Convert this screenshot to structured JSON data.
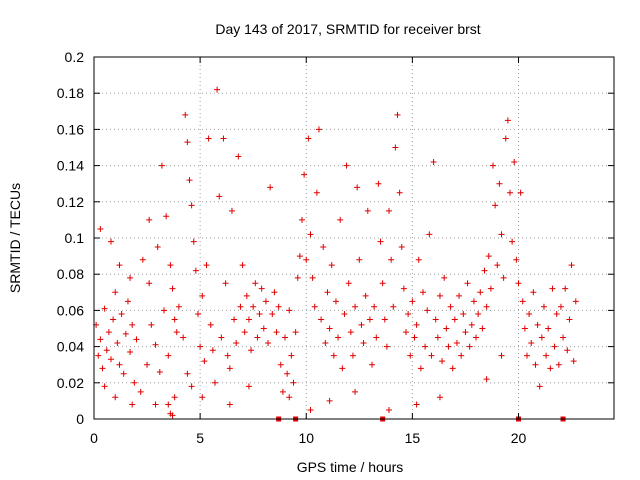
{
  "chart_data": {
    "type": "scatter",
    "title": "Day 143 of 2017, SRMTID for receiver brst",
    "xlabel": "GPS time / hours",
    "ylabel": "SRMTID / TECUs",
    "xlim": [
      0,
      24.5
    ],
    "ylim": [
      0,
      0.2
    ],
    "xticks": [
      0,
      5,
      10,
      15,
      20
    ],
    "xtick_labels": [
      "0",
      "5",
      "10",
      "15",
      "20"
    ],
    "yticks": [
      0,
      0.02,
      0.04,
      0.06,
      0.08,
      0.1,
      0.12,
      0.14,
      0.16,
      0.18,
      0.2
    ],
    "ytick_labels": [
      "0",
      "0.02",
      "0.04",
      "0.06",
      "0.08",
      "0.1",
      "0.12",
      "0.14",
      "0.16",
      "0.18",
      "0.2"
    ],
    "grid": true,
    "marker": "+",
    "color": "#e00000",
    "series": [
      {
        "name": "SRMTID",
        "points": [
          [
            0.1,
            0.052
          ],
          [
            0.2,
            0.035
          ],
          [
            0.3,
            0.044
          ],
          [
            0.4,
            0.028
          ],
          [
            0.5,
            0.061
          ],
          [
            0.6,
            0.038
          ],
          [
            0.7,
            0.048
          ],
          [
            0.8,
            0.033
          ],
          [
            0.9,
            0.055
          ],
          [
            1.0,
            0.07
          ],
          [
            1.1,
            0.042
          ],
          [
            1.2,
            0.03
          ],
          [
            1.3,
            0.058
          ],
          [
            1.4,
            0.025
          ],
          [
            1.5,
            0.047
          ],
          [
            1.6,
            0.065
          ],
          [
            1.7,
            0.037
          ],
          [
            1.8,
            0.052
          ],
          [
            1.9,
            0.02
          ],
          [
            2.0,
            0.044
          ],
          [
            0.3,
            0.105
          ],
          [
            0.8,
            0.098
          ],
          [
            1.2,
            0.085
          ],
          [
            1.7,
            0.078
          ],
          [
            2.3,
            0.088
          ],
          [
            2.6,
            0.11
          ],
          [
            0.5,
            0.018
          ],
          [
            1.0,
            0.012
          ],
          [
            1.8,
            0.008
          ],
          [
            2.2,
            0.015
          ],
          [
            2.5,
            0.03
          ],
          [
            2.7,
            0.052
          ],
          [
            2.9,
            0.041
          ],
          [
            3.1,
            0.026
          ],
          [
            3.3,
            0.06
          ],
          [
            3.5,
            0.035
          ],
          [
            3.7,
            0.072
          ],
          [
            3.9,
            0.048
          ],
          [
            2.6,
            0.075
          ],
          [
            3.0,
            0.095
          ],
          [
            3.2,
            0.14
          ],
          [
            3.4,
            0.112
          ],
          [
            3.6,
            0.085
          ],
          [
            3.8,
            0.055
          ],
          [
            3.5,
            0.008
          ],
          [
            3.6,
            0.003
          ],
          [
            3.7,
            0.002
          ],
          [
            3.8,
            0.012
          ],
          [
            4.0,
            0.062
          ],
          [
            4.2,
            0.045
          ],
          [
            4.3,
            0.168
          ],
          [
            4.4,
            0.153
          ],
          [
            4.5,
            0.132
          ],
          [
            4.6,
            0.118
          ],
          [
            4.7,
            0.098
          ],
          [
            4.8,
            0.082
          ],
          [
            4.4,
            0.025
          ],
          [
            4.6,
            0.018
          ],
          [
            4.9,
            0.058
          ],
          [
            5.0,
            0.04
          ],
          [
            5.1,
            0.068
          ],
          [
            5.2,
            0.032
          ],
          [
            5.3,
            0.085
          ],
          [
            5.4,
            0.155
          ],
          [
            5.5,
            0.052
          ],
          [
            5.6,
            0.038
          ],
          [
            5.7,
            0.02
          ],
          [
            5.8,
            0.182
          ],
          [
            5.9,
            0.123
          ],
          [
            6.0,
            0.045
          ],
          [
            6.1,
            0.155
          ],
          [
            6.2,
            0.075
          ],
          [
            6.3,
            0.035
          ],
          [
            6.4,
            0.028
          ],
          [
            6.5,
            0.115
          ],
          [
            6.6,
            0.055
          ],
          [
            6.7,
            0.042
          ],
          [
            6.8,
            0.145
          ],
          [
            6.9,
            0.062
          ],
          [
            7.0,
            0.085
          ],
          [
            7.1,
            0.048
          ],
          [
            7.2,
            0.068
          ],
          [
            7.3,
            0.055
          ],
          [
            7.4,
            0.038
          ],
          [
            7.5,
            0.062
          ],
          [
            7.6,
            0.075
          ],
          [
            7.7,
            0.045
          ],
          [
            7.8,
            0.058
          ],
          [
            7.9,
            0.072
          ],
          [
            8.0,
            0.05
          ],
          [
            8.1,
            0.065
          ],
          [
            8.2,
            0.042
          ],
          [
            8.3,
            0.128
          ],
          [
            8.4,
            0.058
          ],
          [
            8.5,
            0.07
          ],
          [
            8.6,
            0.048
          ],
          [
            8.7,
            0.062
          ],
          [
            8.8,
            0.03
          ],
          [
            8.9,
            0.015
          ],
          [
            9.0,
            0.045
          ],
          [
            9.1,
            0.025
          ],
          [
            9.2,
            0.06
          ],
          [
            9.3,
            0.035
          ],
          [
            9.4,
            0.02
          ],
          [
            9.5,
            0.048
          ],
          [
            9.6,
            0.078
          ],
          [
            9.7,
            0.09
          ],
          [
            9.8,
            0.11
          ],
          [
            9.9,
            0.135
          ],
          [
            10.0,
            0.088
          ],
          [
            10.1,
            0.155
          ],
          [
            10.2,
            0.102
          ],
          [
            10.3,
            0.078
          ],
          [
            10.4,
            0.062
          ],
          [
            10.5,
            0.125
          ],
          [
            10.6,
            0.16
          ],
          [
            10.7,
            0.055
          ],
          [
            10.8,
            0.095
          ],
          [
            10.9,
            0.042
          ],
          [
            11.0,
            0.07
          ],
          [
            11.1,
            0.05
          ],
          [
            11.2,
            0.085
          ],
          [
            11.3,
            0.035
          ],
          [
            11.4,
            0.065
          ],
          [
            11.5,
            0.045
          ],
          [
            11.6,
            0.11
          ],
          [
            11.7,
            0.028
          ],
          [
            11.8,
            0.058
          ],
          [
            11.9,
            0.14
          ],
          [
            12.0,
            0.075
          ],
          [
            12.1,
            0.048
          ],
          [
            12.2,
            0.035
          ],
          [
            12.3,
            0.062
          ],
          [
            12.4,
            0.128
          ],
          [
            12.5,
            0.088
          ],
          [
            12.6,
            0.052
          ],
          [
            12.7,
            0.042
          ],
          [
            12.8,
            0.068
          ],
          [
            12.9,
            0.115
          ],
          [
            13.0,
            0.055
          ],
          [
            13.1,
            0.03
          ],
          [
            13.2,
            0.062
          ],
          [
            13.3,
            0.045
          ],
          [
            13.4,
            0.13
          ],
          [
            13.5,
            0.098
          ],
          [
            13.6,
            0.075
          ],
          [
            13.7,
            0.055
          ],
          [
            13.8,
            0.04
          ],
          [
            13.9,
            0.115
          ],
          [
            14.0,
            0.088
          ],
          [
            14.1,
            0.062
          ],
          [
            14.2,
            0.15
          ],
          [
            14.3,
            0.168
          ],
          [
            14.4,
            0.125
          ],
          [
            14.5,
            0.095
          ],
          [
            14.6,
            0.072
          ],
          [
            14.7,
            0.048
          ],
          [
            14.8,
            0.058
          ],
          [
            14.9,
            0.035
          ],
          [
            15.0,
            0.065
          ],
          [
            15.1,
            0.045
          ],
          [
            15.2,
            0.052
          ],
          [
            15.3,
            0.088
          ],
          [
            15.4,
            0.028
          ],
          [
            15.5,
            0.07
          ],
          [
            15.6,
            0.04
          ],
          [
            15.7,
            0.06
          ],
          [
            15.8,
            0.102
          ],
          [
            15.9,
            0.035
          ],
          [
            16.0,
            0.142
          ],
          [
            16.1,
            0.055
          ],
          [
            16.2,
            0.045
          ],
          [
            16.3,
            0.068
          ],
          [
            16.4,
            0.032
          ],
          [
            16.5,
            0.078
          ],
          [
            16.6,
            0.05
          ],
          [
            16.7,
            0.04
          ],
          [
            16.8,
            0.062
          ],
          [
            16.9,
            0.028
          ],
          [
            17.0,
            0.055
          ],
          [
            17.1,
            0.042
          ],
          [
            17.2,
            0.068
          ],
          [
            17.3,
            0.035
          ],
          [
            17.4,
            0.058
          ],
          [
            17.5,
            0.048
          ],
          [
            17.6,
            0.075
          ],
          [
            17.7,
            0.04
          ],
          [
            17.8,
            0.052
          ],
          [
            17.9,
            0.065
          ],
          [
            18.0,
            0.045
          ],
          [
            18.1,
            0.058
          ],
          [
            18.2,
            0.07
          ],
          [
            18.3,
            0.05
          ],
          [
            18.4,
            0.082
          ],
          [
            18.5,
            0.062
          ],
          [
            18.6,
            0.09
          ],
          [
            18.7,
            0.072
          ],
          [
            18.8,
            0.14
          ],
          [
            18.9,
            0.118
          ],
          [
            19.0,
            0.085
          ],
          [
            19.1,
            0.13
          ],
          [
            19.2,
            0.102
          ],
          [
            19.3,
            0.078
          ],
          [
            19.4,
            0.155
          ],
          [
            19.5,
            0.165
          ],
          [
            19.6,
            0.125
          ],
          [
            19.7,
            0.098
          ],
          [
            19.8,
            0.142
          ],
          [
            19.9,
            0.088
          ],
          [
            20.0,
            0.075
          ],
          [
            20.1,
            0.125
          ],
          [
            20.2,
            0.065
          ],
          [
            20.3,
            0.05
          ],
          [
            20.4,
            0.035
          ],
          [
            20.5,
            0.058
          ],
          [
            20.6,
            0.042
          ],
          [
            20.7,
            0.07
          ],
          [
            20.8,
            0.03
          ],
          [
            20.9,
            0.052
          ],
          [
            21.0,
            0.018
          ],
          [
            21.1,
            0.045
          ],
          [
            21.2,
            0.062
          ],
          [
            21.3,
            0.035
          ],
          [
            21.4,
            0.05
          ],
          [
            21.5,
            0.028
          ],
          [
            21.6,
            0.072
          ],
          [
            21.7,
            0.04
          ],
          [
            21.8,
            0.058
          ],
          [
            21.9,
            0.03
          ],
          [
            22.0,
            0.062
          ],
          [
            22.1,
            0.045
          ],
          [
            22.2,
            0.072
          ],
          [
            22.3,
            0.038
          ],
          [
            22.4,
            0.055
          ],
          [
            22.5,
            0.085
          ],
          [
            22.6,
            0.032
          ],
          [
            22.7,
            0.065
          ],
          [
            19.2,
            0.035
          ],
          [
            18.5,
            0.022
          ],
          [
            16.3,
            0.012
          ],
          [
            15.2,
            0.008
          ],
          [
            13.9,
            0.005
          ],
          [
            12.3,
            0.015
          ],
          [
            11.1,
            0.01
          ],
          [
            10.2,
            0.005
          ],
          [
            9.2,
            0.012
          ],
          [
            7.3,
            0.018
          ],
          [
            6.4,
            0.008
          ],
          [
            5.1,
            0.012
          ],
          [
            2.9,
            0.008
          ]
        ]
      }
    ],
    "zero_markers_x": [
      8.7,
      9.5,
      13.6,
      20.0,
      22.1
    ]
  }
}
